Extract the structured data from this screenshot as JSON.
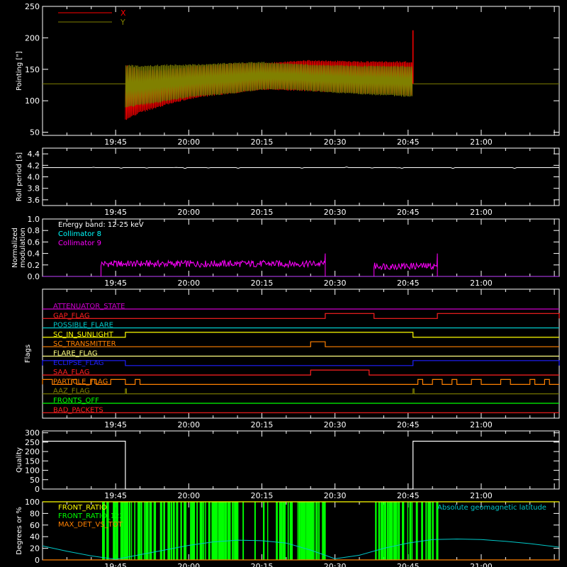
{
  "chart_data": [
    {
      "type": "line",
      "ylabel": "Pointing [\"]",
      "ylim": [
        45,
        250
      ],
      "yticks": [
        50,
        100,
        150,
        200,
        250
      ],
      "xlim": [
        "19:30",
        "21:16"
      ],
      "xticks": [
        "19:45",
        "20:00",
        "20:15",
        "20:30",
        "20:45",
        "21:00"
      ],
      "legend_position": "top-left",
      "series": [
        {
          "name": "X",
          "color": "#ff0000"
        },
        {
          "name": "Y",
          "color": "#808000"
        }
      ],
      "data_window": [
        "19:47",
        "20:46"
      ],
      "constant_value": 127,
      "envelope": {
        "x": [
          "19:47",
          "19:50",
          "19:55",
          "20:00",
          "20:05",
          "20:10",
          "20:15",
          "20:20",
          "20:25",
          "20:30",
          "20:35",
          "20:40",
          "20:45"
        ],
        "X_high": [
          158,
          150,
          150,
          155,
          158,
          160,
          160,
          163,
          165,
          164,
          163,
          163,
          163
        ],
        "X_low": [
          68,
          80,
          92,
          102,
          108,
          112,
          117,
          116,
          115,
          113,
          111,
          110,
          108
        ],
        "Y_high": [
          158,
          156,
          158,
          158,
          160,
          161,
          162,
          160,
          158,
          157,
          156,
          156,
          156
        ],
        "Y_low": [
          88,
          92,
          98,
          105,
          108,
          112,
          117,
          117,
          115,
          112,
          110,
          108,
          106
        ]
      },
      "spike": {
        "x": "20:46",
        "y_max": 212
      }
    },
    {
      "type": "line",
      "ylabel": "Roll period [s]",
      "ylim": [
        3.5,
        4.5
      ],
      "yticks": [
        3.6,
        3.8,
        4.0,
        4.2,
        4.4
      ],
      "xlim": [
        "19:30",
        "21:16"
      ],
      "xticks": [
        "19:45",
        "20:00",
        "20:15",
        "20:30",
        "20:45",
        "21:00"
      ],
      "series": [
        {
          "name": "",
          "color": "#ffffff",
          "constant_value": 4.16
        }
      ]
    },
    {
      "type": "line",
      "ylabel": "Normalized modulation",
      "ylim": [
        0,
        1.0
      ],
      "yticks": [
        0.0,
        0.2,
        0.4,
        0.6,
        0.8,
        1.0
      ],
      "xlim": [
        "19:30",
        "21:16"
      ],
      "xticks": [
        "19:45",
        "20:00",
        "20:15",
        "20:30",
        "20:45",
        "21:00"
      ],
      "annotation": "Energy band: 12-25 keV",
      "series": [
        {
          "name": "Collimator 8",
          "color": "#00ffff",
          "value": 0.0
        },
        {
          "name": "Collimator 9",
          "color": "#ff00ff",
          "intervals": [
            {
              "start": "19:42",
              "end": "20:28",
              "level": 0.22
            },
            {
              "start": "20:38",
              "end": "20:51",
              "level": 0.18
            }
          ]
        }
      ]
    },
    {
      "type": "line",
      "ylabel": "Flags",
      "xlim": [
        "19:30",
        "21:16"
      ],
      "xticks": [
        "19:45",
        "20:00",
        "20:15",
        "20:30",
        "20:45",
        "21:00"
      ],
      "series": [
        {
          "name": "ATTENUATOR_STATE",
          "color": "#cc00cc",
          "on": []
        },
        {
          "name": "GAP_FLAG",
          "color": "#ff2020",
          "on": [
            [
              "20:28",
              "20:38"
            ],
            [
              "20:51",
              "21:16"
            ]
          ]
        },
        {
          "name": "POSSIBLE_FLARE",
          "color": "#00c8c8",
          "on": []
        },
        {
          "name": "SC_IN_SUNLIGHT",
          "color": "#ffff00",
          "on": [
            [
              "19:47",
              "20:46"
            ]
          ]
        },
        {
          "name": "SC_TRANSMITTER",
          "color": "#ff8000",
          "on": [
            [
              "20:25",
              "20:28"
            ]
          ]
        },
        {
          "name": "FLARE_FLAG",
          "color": "#ffff80",
          "on": []
        },
        {
          "name": "ECLIPSE_FLAG",
          "color": "#2020ff",
          "on": [
            [
              "19:30",
              "19:47"
            ],
            [
              "20:46",
              "21:16"
            ]
          ]
        },
        {
          "name": "SAA_FLAG",
          "color": "#ff2020",
          "on": [
            [
              "20:25",
              "20:37"
            ]
          ]
        },
        {
          "name": "PARTICLE_FLAG",
          "color": "#ff8000",
          "on": [
            [
              "19:30",
              "19:32"
            ],
            [
              "19:36",
              "19:37"
            ],
            [
              "19:40",
              "19:41"
            ],
            [
              "19:44",
              "19:47"
            ],
            [
              "19:49",
              "19:50"
            ],
            [
              "20:47",
              "20:48"
            ],
            [
              "20:50",
              "20:52"
            ],
            [
              "20:54",
              "20:55"
            ],
            [
              "20:58",
              "21:00"
            ],
            [
              "21:04",
              "21:06"
            ],
            [
              "21:10",
              "21:11"
            ],
            [
              "21:13",
              "21:14"
            ]
          ]
        },
        {
          "name": "AAZ_FLAG",
          "color": "#808000",
          "on": [
            [
              "19:47",
              "19:47"
            ],
            [
              "20:46",
              "20:46"
            ]
          ]
        },
        {
          "name": "FRONTS_OFF",
          "color": "#00ff00",
          "on": []
        },
        {
          "name": "BAD_PACKETS",
          "color": "#ff2020",
          "on": []
        }
      ]
    },
    {
      "type": "line",
      "ylabel": "Quality",
      "ylim": [
        0,
        310
      ],
      "yticks": [
        0,
        50,
        100,
        150,
        200,
        250,
        300
      ],
      "xlim": [
        "19:30",
        "21:16"
      ],
      "xticks": [
        "19:45",
        "20:00",
        "20:15",
        "20:30",
        "20:45",
        "21:00"
      ],
      "series": [
        {
          "name": "",
          "color": "#ffffff",
          "x": [
            "19:30",
            "19:47",
            "19:47",
            "20:46",
            "20:46",
            "21:16"
          ],
          "y": [
            255,
            255,
            0,
            0,
            255,
            255
          ]
        }
      ]
    },
    {
      "type": "line",
      "ylabel": "Degrees or %",
      "ylim": [
        0,
        100
      ],
      "yticks": [
        0,
        20,
        40,
        60,
        80,
        100
      ],
      "xlim": [
        "19:30",
        "21:16"
      ],
      "xticks": [
        "19:45",
        "20:00",
        "20:15",
        "20:30",
        "20:45",
        "21:00"
      ],
      "series": [
        {
          "name": "FRONT_RATIO",
          "color": "#ffff00",
          "value": 100
        },
        {
          "name": "FRONT_RATIO_1225",
          "color": "#00ff00",
          "active_windows": [
            [
              "19:42",
              "20:28"
            ],
            [
              "20:38",
              "20:51"
            ]
          ]
        },
        {
          "name": "MAX_DET_VS_TOT",
          "color": "#ff8000",
          "value": 0
        },
        {
          "name": "Absolute geomagnetic latitude",
          "color": "#00c8c8",
          "x": [
            "19:30",
            "19:35",
            "19:40",
            "19:45",
            "19:50",
            "19:55",
            "20:00",
            "20:05",
            "20:10",
            "20:15",
            "20:20",
            "20:25",
            "20:30",
            "20:35",
            "20:40",
            "20:45",
            "20:50",
            "20:55",
            "21:00",
            "21:05",
            "21:10",
            "21:16"
          ],
          "y": [
            24,
            15,
            7,
            1,
            9,
            17,
            25,
            31,
            34,
            33,
            29,
            17,
            2,
            8,
            20,
            29,
            35,
            36,
            35,
            32,
            28,
            22
          ]
        }
      ]
    }
  ]
}
